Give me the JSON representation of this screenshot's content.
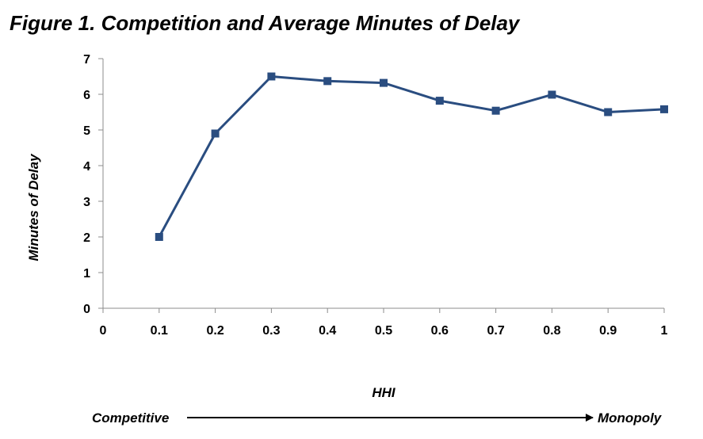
{
  "title": "Figure 1. Competition and Average Minutes of Delay",
  "colors": {
    "series": "#2a4d80",
    "axis": "#8c8c8c",
    "text": "#000000"
  },
  "chart_data": {
    "type": "line",
    "title": "Figure 1. Competition and Average Minutes of Delay",
    "xlabel": "HHI",
    "ylabel": "Minutes of Delay",
    "xlim": [
      0,
      1
    ],
    "ylim": [
      0,
      7
    ],
    "grid": false,
    "x_ticks": [
      "0",
      "0.1",
      "0.2",
      "0.3",
      "0.4",
      "0.5",
      "0.6",
      "0.7",
      "0.8",
      "0.9",
      "1"
    ],
    "y_ticks": [
      "0",
      "1",
      "2",
      "3",
      "4",
      "5",
      "6",
      "7"
    ],
    "series": [
      {
        "marker": "square",
        "x": [
          0.1,
          0.2,
          0.3,
          0.4,
          0.5,
          0.6,
          0.7,
          0.8,
          0.9,
          1.0
        ],
        "y": [
          2.0,
          4.9,
          6.5,
          6.37,
          6.32,
          5.82,
          5.54,
          5.99,
          5.5,
          5.58
        ]
      }
    ],
    "annotation": {
      "left_label": "Competitive",
      "right_label": "Monopoly"
    }
  }
}
